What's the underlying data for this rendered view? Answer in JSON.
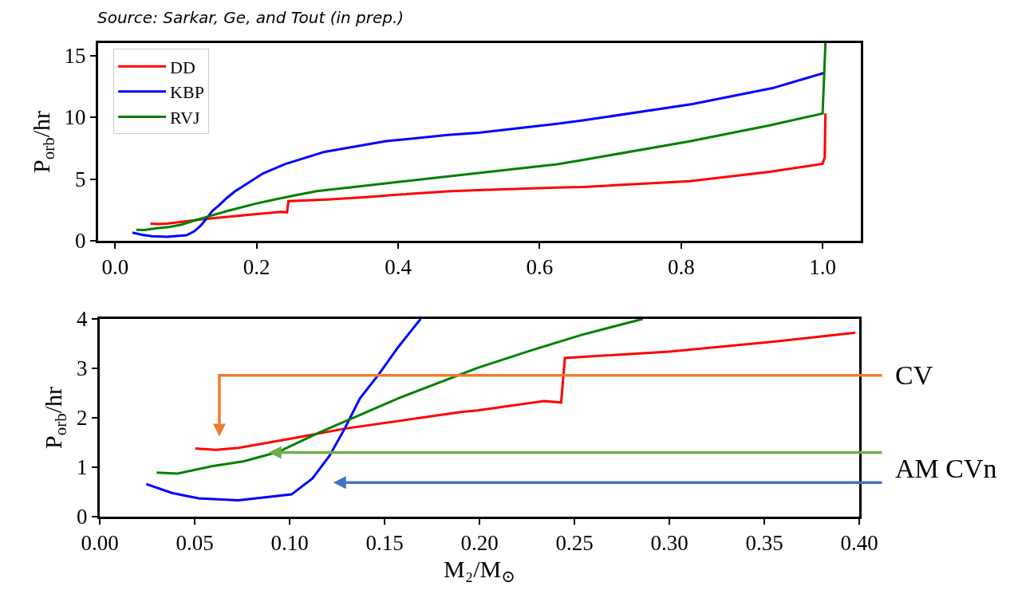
{
  "chart_data": [
    {
      "type": "line",
      "ylabel": "P$_{orb}$/hr",
      "annotations": [
        "Source: Sarkar, Ge, and Tout (in prep.)"
      ],
      "xlim": [
        -0.024,
        1.054
      ],
      "ylim": [
        0,
        16
      ],
      "xticks": [
        {
          "value": 0,
          "label": "0.0"
        },
        {
          "value": 0.2,
          "label": "0.2"
        },
        {
          "value": 0.4,
          "label": "0.4"
        },
        {
          "value": 0.6,
          "label": "0.6"
        },
        {
          "value": 0.8,
          "label": "0.8"
        },
        {
          "value": 1,
          "label": "1.0"
        }
      ],
      "yticks": [
        0,
        5,
        10,
        15
      ],
      "grid": false,
      "legend": "top left",
      "series": [
        {
          "name": "DD",
          "color": "#ff0000",
          "x": [
            0.05,
            0.061,
            0.073,
            0.101,
            0.129,
            0.191,
            0.234,
            0.243,
            0.245,
            0.3,
            0.355,
            0.398,
            0.47,
            0.512,
            0.624,
            0.662,
            0.812,
            0.925,
            1.0,
            1.003,
            1.004
          ],
          "values": [
            1.38,
            1.35,
            1.39,
            1.58,
            1.78,
            2.12,
            2.34,
            2.31,
            3.21,
            3.34,
            3.54,
            3.72,
            4.0,
            4.1,
            4.3,
            4.35,
            4.83,
            5.58,
            6.23,
            6.76,
            10.3
          ]
        },
        {
          "name": "KBP",
          "color": "#0000ff",
          "x": [
            0.0245,
            0.038,
            0.052,
            0.073,
            0.101,
            0.112,
            0.121,
            0.129,
            0.137,
            0.147,
            0.157,
            0.169,
            0.209,
            0.24,
            0.296,
            0.383,
            0.47,
            0.514,
            0.627,
            0.665,
            0.816,
            0.929,
            1.003
          ],
          "values": [
            0.66,
            0.48,
            0.37,
            0.33,
            0.45,
            0.77,
            1.23,
            1.78,
            2.39,
            2.88,
            3.42,
            3.98,
            5.45,
            6.2,
            7.2,
            8.06,
            8.56,
            8.74,
            9.48,
            9.77,
            11.06,
            12.35,
            13.6
          ]
        },
        {
          "name": "RVJ",
          "color": "#008000",
          "x": [
            0.03,
            0.041,
            0.059,
            0.076,
            0.094,
            0.115,
            0.133,
            0.157,
            0.199,
            0.227,
            0.254,
            0.285,
            0.468,
            0.625,
            0.662,
            0.812,
            0.925,
            1.0,
            1.004
          ],
          "values": [
            0.89,
            0.87,
            1.02,
            1.12,
            1.31,
            1.69,
            1.99,
            2.39,
            3.01,
            3.36,
            3.68,
            4.02,
            5.2,
            6.2,
            6.55,
            8.05,
            9.34,
            10.3,
            16
          ]
        }
      ]
    },
    {
      "type": "line",
      "xlabel": "M₂/M$_{⊙}$",
      "ylabel": "P$_{orb}$/hr",
      "annotations": [
        "CV",
        "AM CVn"
      ],
      "xlim": [
        0,
        0.4
      ],
      "ylim": [
        0,
        4
      ],
      "xticks": [
        {
          "value": 0,
          "label": "0.00"
        },
        {
          "value": 0.05,
          "label": "0.05"
        },
        {
          "value": 0.1,
          "label": "0.10"
        },
        {
          "value": 0.15,
          "label": "0.15"
        },
        {
          "value": 0.2,
          "label": "0.20"
        },
        {
          "value": 0.25,
          "label": "0.25"
        },
        {
          "value": 0.3,
          "label": "0.30"
        },
        {
          "value": 0.35,
          "label": "0.35"
        },
        {
          "value": 0.4,
          "label": "0.40"
        }
      ],
      "yticks": [
        0,
        1,
        2,
        3,
        4
      ],
      "grid": false,
      "legend": false,
      "series": [
        {
          "color": "#ff0000",
          "x": [
            0.0503,
            0.061,
            0.073,
            0.101,
            0.129,
            0.191,
            0.199,
            0.234,
            0.243,
            0.245,
            0.3,
            0.355,
            0.398
          ],
          "values": [
            1.38,
            1.35,
            1.39,
            1.58,
            1.78,
            2.12,
            2.15,
            2.34,
            2.31,
            3.21,
            3.34,
            3.54,
            3.72
          ]
        },
        {
          "color": "#0000ff",
          "x": [
            0.0245,
            0.038,
            0.052,
            0.073,
            0.101,
            0.112,
            0.121,
            0.129,
            0.137,
            0.147,
            0.157,
            0.169
          ],
          "values": [
            0.66,
            0.48,
            0.37,
            0.33,
            0.45,
            0.77,
            1.23,
            1.78,
            2.39,
            2.88,
            3.42,
            4
          ]
        },
        {
          "color": "#008000",
          "x": [
            0.03,
            0.041,
            0.059,
            0.076,
            0.094,
            0.115,
            0.133,
            0.157,
            0.199,
            0.227,
            0.254,
            0.286
          ],
          "values": [
            0.89,
            0.87,
            1.02,
            1.12,
            1.31,
            1.69,
            1.99,
            2.39,
            3.01,
            3.36,
            3.68,
            4
          ]
        }
      ]
    }
  ]
}
